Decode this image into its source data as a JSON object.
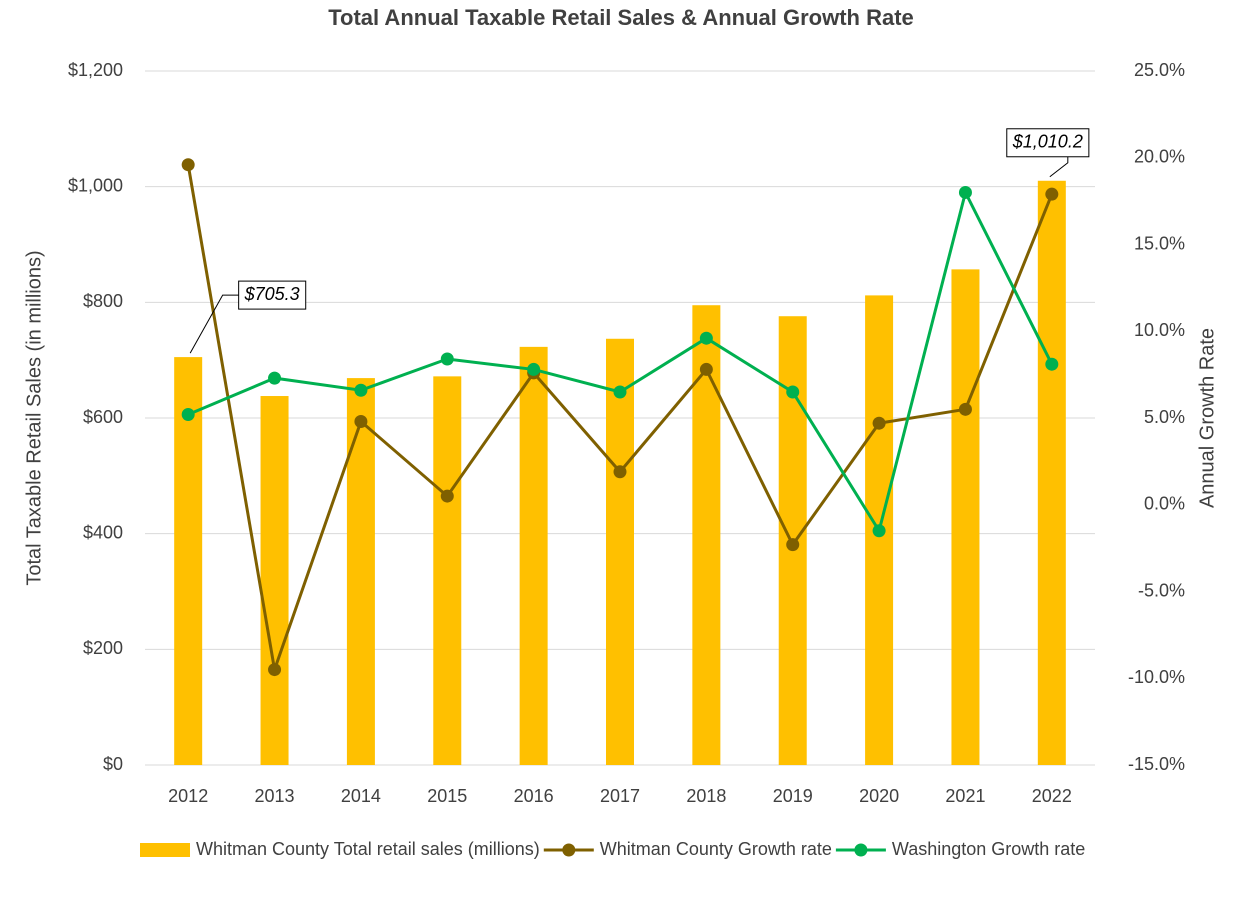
{
  "chart_data": {
    "type": "bar_line",
    "title": "Total Annual Taxable Retail Sales & Annual Growth Rate",
    "ylabel": "Total Taxable Retail Sales (in millions)",
    "y2label": "Annual Growth Rate",
    "categories": [
      "2012",
      "2013",
      "2014",
      "2015",
      "2016",
      "2017",
      "2018",
      "2019",
      "2020",
      "2021",
      "2022"
    ],
    "ylim": [
      0,
      1200
    ],
    "yticks": [
      {
        "value": 0,
        "label": "$0"
      },
      {
        "value": 200,
        "label": "$200"
      },
      {
        "value": 400,
        "label": "$400"
      },
      {
        "value": 600,
        "label": "$600"
      },
      {
        "value": 800,
        "label": "$800"
      },
      {
        "value": 1000,
        "label": "$1,000"
      },
      {
        "value": 1200,
        "label": "$1,200"
      }
    ],
    "y2lim": [
      -15,
      25
    ],
    "y2ticks": [
      {
        "value": -15,
        "label": "-15.0%"
      },
      {
        "value": -10,
        "label": "-10.0%"
      },
      {
        "value": -5,
        "label": "-5.0%"
      },
      {
        "value": 0,
        "label": "0.0%"
      },
      {
        "value": 5,
        "label": "5.0%"
      },
      {
        "value": 10,
        "label": "10.0%"
      },
      {
        "value": 15,
        "label": "15.0%"
      },
      {
        "value": 20,
        "label": "20.0%"
      },
      {
        "value": 25,
        "label": "25.0%"
      }
    ],
    "grid": true,
    "legend": "bottom",
    "series": [
      {
        "name": "Whitman County Total retail sales (millions)",
        "type": "bar",
        "color": "#ffc000",
        "values": [
          705.3,
          638,
          669,
          672,
          723,
          737,
          795,
          776,
          812,
          857,
          1010.2
        ],
        "value_labels": [
          "$705.3",
          null,
          null,
          null,
          null,
          null,
          null,
          null,
          null,
          null,
          "$1,010.2"
        ]
      },
      {
        "name": "Whitman County Growth rate",
        "type": "line",
        "axis": "y2",
        "color": "#7f6000",
        "values": [
          19.6,
          -9.5,
          4.8,
          0.5,
          7.6,
          1.9,
          7.8,
          -2.3,
          4.7,
          5.5,
          17.9
        ]
      },
      {
        "name": "Washington Growth rate",
        "type": "line",
        "axis": "y2",
        "color": "#00b050",
        "values": [
          5.2,
          7.3,
          6.6,
          8.4,
          7.8,
          6.5,
          9.6,
          6.5,
          -1.5,
          18.0,
          8.1
        ]
      }
    ]
  }
}
